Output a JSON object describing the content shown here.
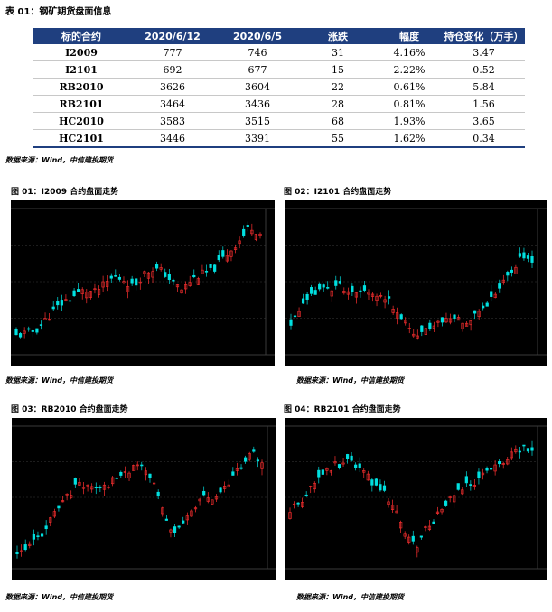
{
  "table_title": "表 01：钢矿期货盘面信息",
  "table": {
    "headers": [
      "标的合约",
      "2020/6/12",
      "2020/6/5",
      "涨跌",
      "幅度",
      "持仓变化（万手）"
    ],
    "rows": [
      [
        "I2009",
        "777",
        "746",
        "31",
        "4.16%",
        "3.47"
      ],
      [
        "I2101",
        "692",
        "677",
        "15",
        "2.22%",
        "0.52"
      ],
      [
        "RB2010",
        "3626",
        "3604",
        "22",
        "0.61%",
        "5.84"
      ],
      [
        "RB2101",
        "3464",
        "3436",
        "28",
        "0.81%",
        "1.56"
      ],
      [
        "HC2010",
        "3583",
        "3515",
        "68",
        "1.93%",
        "3.65"
      ],
      [
        "HC2101",
        "3446",
        "3391",
        "55",
        "1.62%",
        "0.34"
      ]
    ]
  },
  "source_text": "数据来源：Wind，中信建投期货",
  "figures": [
    {
      "title": "图 01：I2009 合约盘面走势",
      "seed": 11,
      "path": [
        0.1,
        0.12,
        0.14,
        0.22,
        0.3,
        0.36,
        0.4,
        0.44,
        0.42,
        0.48,
        0.54,
        0.52,
        0.46,
        0.56,
        0.6,
        0.58,
        0.5,
        0.44,
        0.52,
        0.56,
        0.58,
        0.66,
        0.74,
        0.82,
        0.92,
        0.86
      ]
    },
    {
      "title": "图 02：I2101 合约盘面走势",
      "seed": 23,
      "path": [
        0.2,
        0.3,
        0.38,
        0.44,
        0.46,
        0.48,
        0.4,
        0.42,
        0.45,
        0.4,
        0.36,
        0.3,
        0.18,
        0.08,
        0.14,
        0.2,
        0.22,
        0.24,
        0.2,
        0.26,
        0.32,
        0.4,
        0.5,
        0.6,
        0.7,
        0.64
      ]
    },
    {
      "title": "图 03：RB2010 合约盘面走势",
      "seed": 37,
      "path": [
        0.06,
        0.1,
        0.18,
        0.28,
        0.4,
        0.5,
        0.58,
        0.62,
        0.56,
        0.6,
        0.64,
        0.7,
        0.74,
        0.72,
        0.6,
        0.4,
        0.2,
        0.3,
        0.42,
        0.5,
        0.48,
        0.56,
        0.66,
        0.74,
        0.84,
        0.78
      ]
    },
    {
      "title": "图 04：RB2101 合约盘面走势",
      "seed": 53,
      "path": [
        0.4,
        0.46,
        0.58,
        0.66,
        0.72,
        0.76,
        0.78,
        0.74,
        0.66,
        0.58,
        0.52,
        0.4,
        0.2,
        0.12,
        0.26,
        0.34,
        0.44,
        0.52,
        0.58,
        0.62,
        0.7,
        0.72,
        0.78,
        0.84,
        0.88,
        0.86
      ]
    }
  ]
}
